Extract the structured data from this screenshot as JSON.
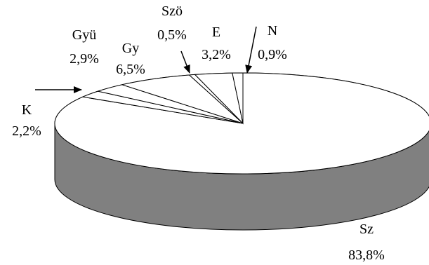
{
  "chart_data": {
    "type": "pie",
    "style": "3d",
    "colors": {
      "top": "#ffffff",
      "side": "#808080",
      "outline": "#000000"
    },
    "slices": [
      {
        "name": "Sz",
        "value": 83.8,
        "value_label": "83,8%"
      },
      {
        "name": "K",
        "value": 2.2,
        "value_label": "2,2%"
      },
      {
        "name": "Gyü",
        "value": 2.9,
        "value_label": "2,9%"
      },
      {
        "name": "Gy",
        "value": 6.5,
        "value_label": "6,5%"
      },
      {
        "name": "Szö",
        "value": 0.5,
        "value_label": "0,5%"
      },
      {
        "name": "E",
        "value": 3.2,
        "value_label": "3,2%"
      },
      {
        "name": "N",
        "value": 0.9,
        "value_label": "0,9%"
      }
    ]
  }
}
